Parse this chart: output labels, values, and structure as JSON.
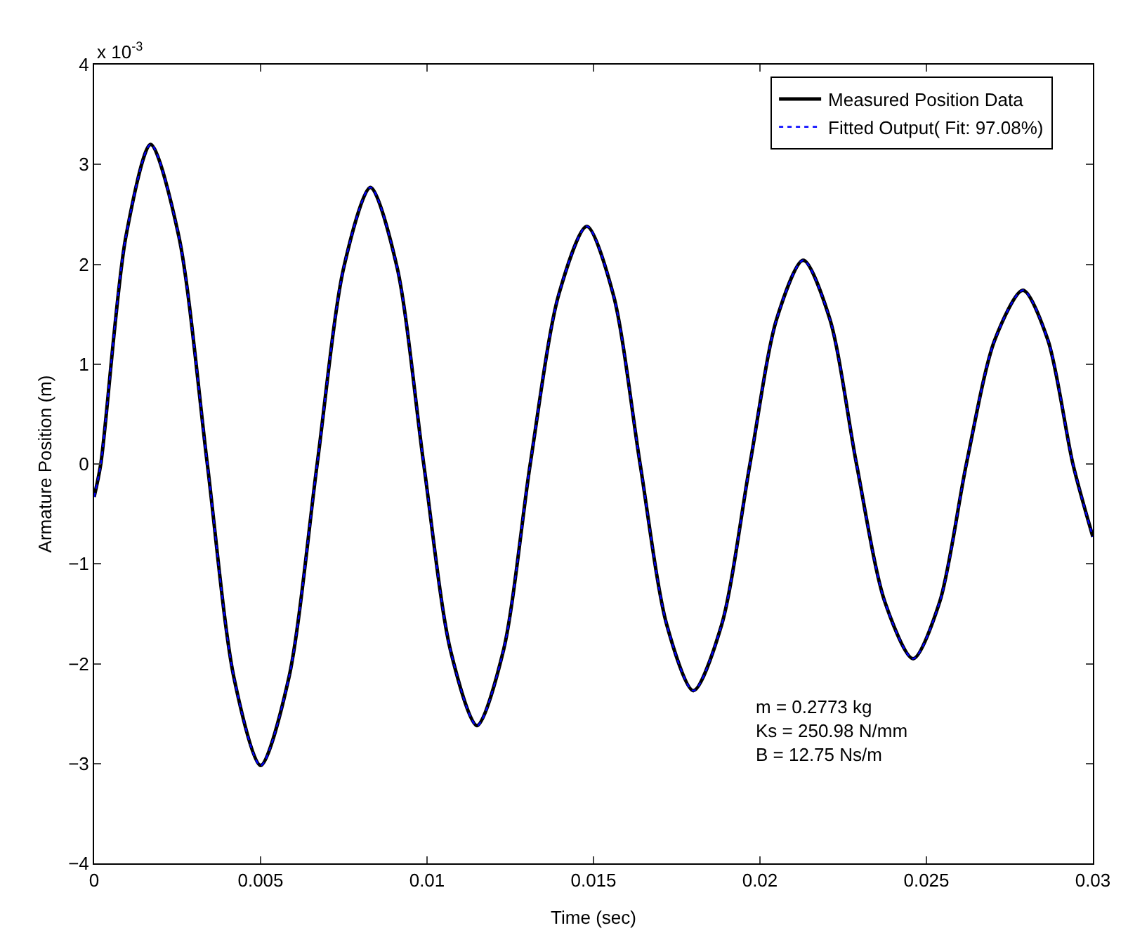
{
  "chart_data": {
    "type": "line",
    "xlabel": "Time (sec)",
    "ylabel": "Armature Position (m)",
    "x": [
      0,
      0.0002,
      0.00095,
      0.0017,
      0.00255,
      0.0034,
      0.0042,
      0.005,
      0.00585,
      0.0067,
      0.0075,
      0.0083,
      0.0091,
      0.0099,
      0.0107,
      0.0115,
      0.0123,
      0.0131,
      0.01395,
      0.0148,
      0.0156,
      0.0164,
      0.0172,
      0.018,
      0.01885,
      0.0197,
      0.0205,
      0.0213,
      0.0221,
      0.0229,
      0.02375,
      0.0246,
      0.0254,
      0.0262,
      0.02705,
      0.0279,
      0.02865,
      0.0294,
      0.03
    ],
    "series": [
      {
        "name": "Measured Position Data",
        "color": "#000000",
        "line_style": "solid",
        "values": [
          -0.33,
          0,
          2.27,
          3.2,
          2.27,
          0,
          -2.14,
          -3.02,
          -2.14,
          0,
          1.97,
          2.77,
          1.97,
          0,
          -1.86,
          -2.62,
          -1.86,
          0,
          1.69,
          2.38,
          1.69,
          0,
          -1.61,
          -2.27,
          -1.61,
          0,
          1.45,
          2.04,
          1.45,
          0,
          -1.38,
          -1.95,
          -1.38,
          0,
          1.24,
          1.74,
          1.24,
          0,
          -0.73
        ]
      },
      {
        "name": "Fitted Output( Fit: 97.08%)",
        "color": "#0000ff",
        "line_style": "dotted",
        "values": [
          -0.33,
          0,
          2.27,
          3.2,
          2.27,
          0,
          -2.14,
          -3.02,
          -2.14,
          0,
          1.97,
          2.77,
          1.97,
          0,
          -1.86,
          -2.62,
          -1.86,
          0,
          1.69,
          2.38,
          1.69,
          0,
          -1.61,
          -2.27,
          -1.61,
          0,
          1.45,
          2.04,
          1.45,
          0,
          -1.38,
          -1.95,
          -1.38,
          0,
          1.24,
          1.74,
          1.24,
          0,
          -0.73
        ]
      }
    ],
    "xlim": [
      0,
      0.03
    ],
    "xticks": [
      0,
      0.005,
      0.01,
      0.015,
      0.02,
      0.025,
      0.03
    ],
    "ylim": [
      -4,
      4
    ],
    "yticks": [
      {
        "value": -4,
        "label": "−4"
      },
      {
        "value": -3,
        "label": "−3"
      },
      {
        "value": -2,
        "label": "−2"
      },
      {
        "value": -1,
        "label": "−1"
      },
      0,
      1,
      2,
      3,
      4
    ],
    "annotations": [
      {
        "text": "x 10$^{-3}$"
      },
      "m = 0.2773 kg\nKs = 250.98 N/mm\nB = 12.75 Ns/m"
    ],
    "legend": "top right",
    "marker": "none"
  }
}
